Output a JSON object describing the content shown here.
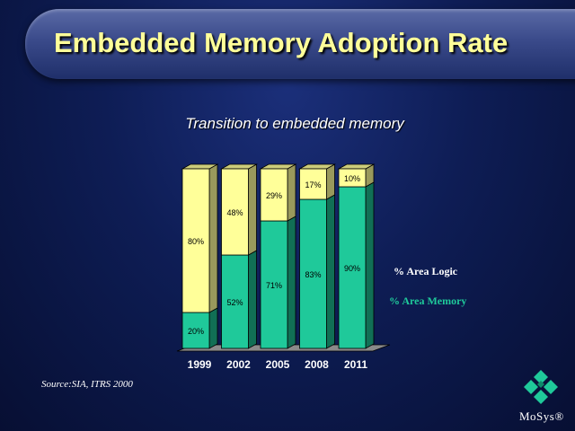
{
  "slide": {
    "title": "Embedded Memory Adoption Rate",
    "source": "Source:SIA, ITRS 2000",
    "logo_text": "MoSys®"
  },
  "colors": {
    "logic": "#ffff99",
    "memory": "#1fc99a",
    "title": "#ffff99"
  },
  "chart_data": {
    "type": "bar",
    "stacked": true,
    "title": "Transition to embedded memory",
    "categories": [
      "1999",
      "2002",
      "2005",
      "2008",
      "2011"
    ],
    "series": [
      {
        "name": "% Area Memory",
        "values": [
          20,
          52,
          71,
          83,
          90
        ],
        "labels": [
          "20%",
          "52%",
          "71%",
          "83%",
          "90%"
        ]
      },
      {
        "name": "% Area Logic",
        "values": [
          80,
          48,
          29,
          17,
          10
        ],
        "labels": [
          "80%",
          "48%",
          "29%",
          "17%",
          "10%"
        ]
      }
    ],
    "ylim": [
      0,
      100
    ],
    "legend_position": "right",
    "grid": false
  }
}
